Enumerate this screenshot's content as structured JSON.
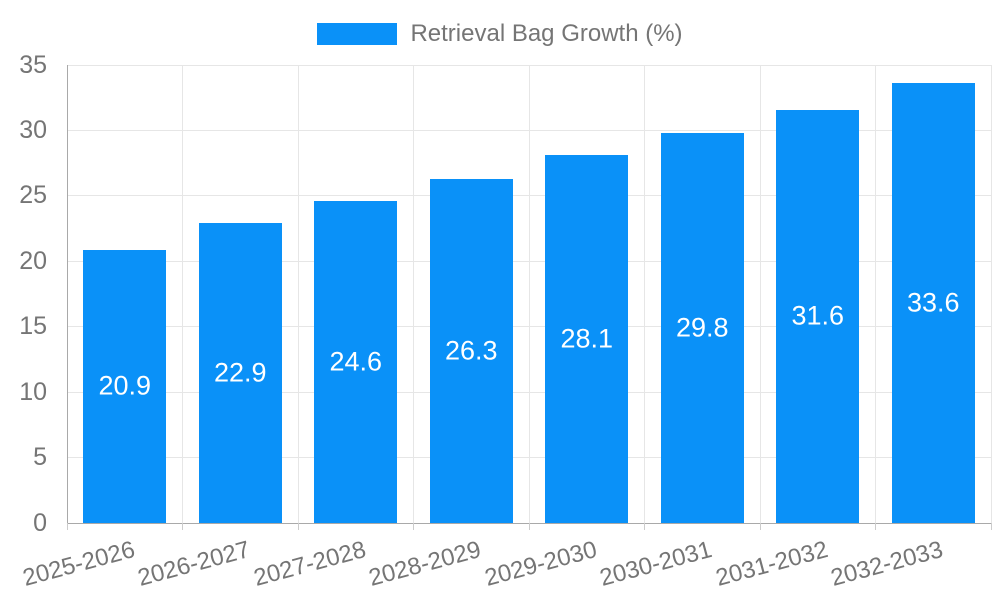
{
  "chart_data": {
    "type": "bar",
    "title": "",
    "xlabel": "",
    "ylabel": "",
    "categories": [
      "2025-2026",
      "2026-2027",
      "2027-2028",
      "2028-2029",
      "2029-2030",
      "2030-2031",
      "2031-2032",
      "2032-2033"
    ],
    "series": [
      {
        "name": "Retrieval Bag Growth (%)",
        "values": [
          20.9,
          22.9,
          24.6,
          26.3,
          28.1,
          29.8,
          31.6,
          33.6
        ]
      }
    ],
    "value_labels_shown": true,
    "value_label_decimals": 1,
    "ylim": [
      0,
      35
    ],
    "yticks": [
      0,
      5,
      10,
      15,
      20,
      25,
      30,
      35
    ],
    "grid": true,
    "legend_position": "top",
    "bar_color": "#0a91f8",
    "value_label_color": "#ffffff",
    "axis_text_color": "#757575",
    "grid_color": "#e6e6e6",
    "axis_line_color": "#a9a9a9",
    "tick_color": "#cccccc",
    "background_color": "#ffffff"
  }
}
